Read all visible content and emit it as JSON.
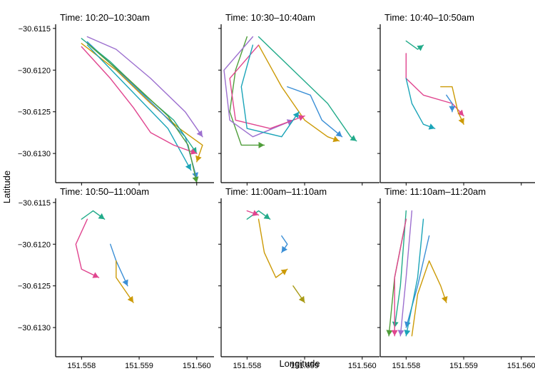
{
  "chart_data": {
    "type": "line",
    "xlabel": "Longitude",
    "ylabel": "Latitude",
    "xlim": [
      151.55755,
      151.5603
    ],
    "ylim": [
      -30.61335,
      -30.61145
    ],
    "x_ticks": [
      151.558,
      151.559,
      151.56
    ],
    "x_tick_labels": [
      "151.558",
      "151.559",
      "151.560"
    ],
    "y_ticks": [
      -30.6115,
      -30.612,
      -30.6125,
      -30.613
    ],
    "y_tick_labels": [
      "−30.6115",
      "−30.6120",
      "−30.6125",
      "−30.6130"
    ],
    "grid": false,
    "panels": [
      {
        "title": "Time: 10:20–10:30am",
        "series": [
          {
            "color": "#cc9a06",
            "points": [
              [
                151.558,
                -30.61168
              ],
              [
                151.5586,
                -30.612
              ],
              [
                151.5592,
                -30.6124
              ],
              [
                151.5597,
                -30.6127
              ],
              [
                151.5601,
                -30.6129
              ],
              [
                151.56,
                -30.6131
              ]
            ]
          },
          {
            "color": "#3b8fd6",
            "points": [
              [
                151.5581,
                -30.61166
              ],
              [
                151.5587,
                -30.61205
              ],
              [
                151.5593,
                -30.61245
              ],
              [
                151.5598,
                -30.6128
              ],
              [
                151.56,
                -30.6133
              ]
            ]
          },
          {
            "color": "#9c6fcf",
            "points": [
              [
                151.5581,
                -30.6116
              ],
              [
                151.5586,
                -30.61175
              ],
              [
                151.5592,
                -30.6121
              ],
              [
                151.5598,
                -30.6125
              ],
              [
                151.5601,
                -30.6128
              ]
            ]
          },
          {
            "color": "#22ab8a",
            "points": [
              [
                151.558,
                -30.61162
              ],
              [
                151.5585,
                -30.6119
              ],
              [
                151.5591,
                -30.6123
              ],
              [
                151.5596,
                -30.6126
              ],
              [
                151.56,
                -30.613
              ]
            ]
          },
          {
            "color": "#1aa4b8",
            "points": [
              [
                151.5581,
                -30.6117
              ],
              [
                151.5588,
                -30.6122
              ],
              [
                151.5595,
                -30.6127
              ],
              [
                151.5599,
                -30.6132
              ]
            ]
          },
          {
            "color": "#e0458f",
            "points": [
              [
                151.558,
                -30.61172
              ],
              [
                151.5585,
                -30.6121
              ],
              [
                151.5589,
                -30.61245
              ],
              [
                151.5592,
                -30.61275
              ],
              [
                151.5596,
                -30.6129
              ],
              [
                151.56,
                -30.613
              ]
            ]
          },
          {
            "color": "#4f9d3a",
            "points": [
              [
                151.5581,
                -30.61168
              ],
              [
                151.5588,
                -30.6121
              ],
              [
                151.5595,
                -30.61255
              ],
              [
                151.55985,
                -30.6129
              ],
              [
                151.56,
                -30.61335
              ]
            ]
          }
        ]
      },
      {
        "title": "Time: 10:30–10:40am",
        "series": [
          {
            "color": "#cc9a06",
            "points": [
              [
                151.5582,
                -30.6117
              ],
              [
                151.5586,
                -30.6122
              ],
              [
                151.559,
                -30.6126
              ],
              [
                151.5594,
                -30.6128
              ],
              [
                151.5596,
                -30.61285
              ]
            ]
          },
          {
            "color": "#4f9d3a",
            "points": [
              [
                151.558,
                -30.6116
              ],
              [
                151.5578,
                -30.612
              ],
              [
                151.5577,
                -30.6125
              ],
              [
                151.5579,
                -30.6129
              ],
              [
                151.5583,
                -30.6129
              ]
            ]
          },
          {
            "color": "#22ab8a",
            "points": [
              [
                151.5582,
                -30.6116
              ],
              [
                151.5588,
                -30.612
              ],
              [
                151.5594,
                -30.6124
              ],
              [
                151.5598,
                -30.6128
              ],
              [
                151.5599,
                -30.61285
              ]
            ]
          },
          {
            "color": "#3b8fd6",
            "points": [
              [
                151.5587,
                -30.6122
              ],
              [
                151.5591,
                -30.6123
              ],
              [
                151.5593,
                -30.6126
              ],
              [
                151.55965,
                -30.6128
              ]
            ]
          },
          {
            "color": "#9c6fcf",
            "points": [
              [
                151.5581,
                -30.6116
              ],
              [
                151.5576,
                -30.612
              ],
              [
                151.5577,
                -30.6126
              ],
              [
                151.5581,
                -30.6128
              ],
              [
                151.5588,
                -30.6126
              ]
            ]
          },
          {
            "color": "#e0458f",
            "points": [
              [
                151.5582,
                -30.6117
              ],
              [
                151.5577,
                -30.6121
              ],
              [
                151.5578,
                -30.6126
              ],
              [
                151.5584,
                -30.6127
              ],
              [
                151.559,
                -30.61255
              ]
            ]
          },
          {
            "color": "#1aa4b8",
            "points": [
              [
                151.5581,
                -30.6117
              ],
              [
                151.5579,
                -30.6122
              ],
              [
                151.558,
                -30.6127
              ],
              [
                151.5586,
                -30.6128
              ],
              [
                151.5589,
                -30.6125
              ]
            ]
          }
        ]
      },
      {
        "title": "Time: 10:40–10:50am",
        "series": [
          {
            "color": "#e0458f",
            "points": [
              [
                151.558,
                -30.6118
              ],
              [
                151.558,
                -30.6121
              ],
              [
                151.5583,
                -30.6123
              ],
              [
                151.5588,
                -30.6124
              ],
              [
                151.559,
                -30.61255
              ]
            ]
          },
          {
            "color": "#1aa4b8",
            "points": [
              [
                151.558,
                -30.6121
              ],
              [
                151.5581,
                -30.6124
              ],
              [
                151.5583,
                -30.61265
              ],
              [
                151.5585,
                -30.6127
              ]
            ]
          },
          {
            "color": "#cc9a06",
            "points": [
              [
                151.5586,
                -30.6122
              ],
              [
                151.5588,
                -30.6122
              ],
              [
                151.5589,
                -30.6125
              ],
              [
                151.559,
                -30.61265
              ]
            ]
          },
          {
            "color": "#3b8fd6",
            "points": [
              [
                151.5587,
                -30.6123
              ],
              [
                151.5588,
                -30.6124
              ],
              [
                151.5588,
                -30.6125
              ]
            ]
          },
          {
            "color": "#22ab8a",
            "points": [
              [
                151.558,
                -30.61165
              ],
              [
                151.5582,
                -30.61175
              ],
              [
                151.5583,
                -30.6117
              ]
            ]
          }
        ]
      },
      {
        "title": "Time: 10:50–11:00am",
        "series": [
          {
            "color": "#e0458f",
            "points": [
              [
                151.5581,
                -30.6117
              ],
              [
                151.5579,
                -30.612
              ],
              [
                151.558,
                -30.6123
              ],
              [
                151.5583,
                -30.6124
              ]
            ]
          },
          {
            "color": "#3b8fd6",
            "points": [
              [
                151.5585,
                -30.612
              ],
              [
                151.5586,
                -30.6122
              ],
              [
                151.5588,
                -30.6125
              ]
            ]
          },
          {
            "color": "#cc9a06",
            "points": [
              [
                151.5586,
                -30.6122
              ],
              [
                151.5586,
                -30.6124
              ],
              [
                151.5589,
                -30.6127
              ]
            ]
          },
          {
            "color": "#22ab8a",
            "points": [
              [
                151.558,
                -30.6117
              ],
              [
                151.5582,
                -30.6116
              ],
              [
                151.5584,
                -30.6117
              ]
            ]
          }
        ]
      },
      {
        "title": "Time: 11:00am–11:10am",
        "series": [
          {
            "color": "#cc9a06",
            "points": [
              [
                151.5582,
                -30.6117
              ],
              [
                151.5583,
                -30.6121
              ],
              [
                151.5585,
                -30.6124
              ],
              [
                151.5587,
                -30.6123
              ]
            ]
          },
          {
            "color": "#3b8fd6",
            "points": [
              [
                151.5586,
                -30.6119
              ],
              [
                151.5587,
                -30.612
              ],
              [
                151.5586,
                -30.6121
              ]
            ]
          },
          {
            "color": "#22ab8a",
            "points": [
              [
                151.558,
                -30.6117
              ],
              [
                151.5582,
                -30.6116
              ],
              [
                151.5584,
                -30.6117
              ]
            ]
          },
          {
            "color": "#e0458f",
            "points": [
              [
                151.558,
                -30.6116
              ],
              [
                151.5582,
                -30.61165
              ]
            ]
          },
          {
            "color": "#a89a14",
            "points": [
              [
                151.5588,
                -30.6125
              ],
              [
                151.5589,
                -30.6126
              ],
              [
                151.559,
                -30.6127
              ]
            ]
          }
        ]
      },
      {
        "title": "Time: 11:10am–11:20am",
        "series": [
          {
            "color": "#cc9a06",
            "points": [
              [
                151.5581,
                -30.6131
              ],
              [
                151.5582,
                -30.6126
              ],
              [
                151.5584,
                -30.6122
              ],
              [
                151.5586,
                -30.6125
              ],
              [
                151.5587,
                -30.6127
              ]
            ]
          },
          {
            "color": "#4f9d3a",
            "points": [
              [
                151.558,
                -30.6117
              ],
              [
                151.5578,
                -30.6124
              ],
              [
                151.5577,
                -30.6131
              ]
            ]
          },
          {
            "color": "#22ab8a",
            "points": [
              [
                151.558,
                -30.6116
              ],
              [
                151.5579,
                -30.6125
              ],
              [
                151.5578,
                -30.613
              ]
            ]
          },
          {
            "color": "#3b8fd6",
            "points": [
              [
                151.5584,
                -30.6119
              ],
              [
                151.5582,
                -30.6125
              ],
              [
                151.558,
                -30.613
              ]
            ]
          },
          {
            "color": "#9c6fcf",
            "points": [
              [
                151.5581,
                -30.6116
              ],
              [
                151.558,
                -30.6124
              ],
              [
                151.5579,
                -30.6131
              ]
            ]
          },
          {
            "color": "#e0458f",
            "points": [
              [
                151.558,
                -30.6117
              ],
              [
                151.5578,
                -30.6124
              ],
              [
                151.5578,
                -30.6131
              ]
            ]
          },
          {
            "color": "#1aa4b8",
            "points": [
              [
                151.5583,
                -30.6117
              ],
              [
                151.5582,
                -30.6124
              ],
              [
                151.558,
                -30.6131
              ]
            ]
          }
        ]
      }
    ]
  }
}
